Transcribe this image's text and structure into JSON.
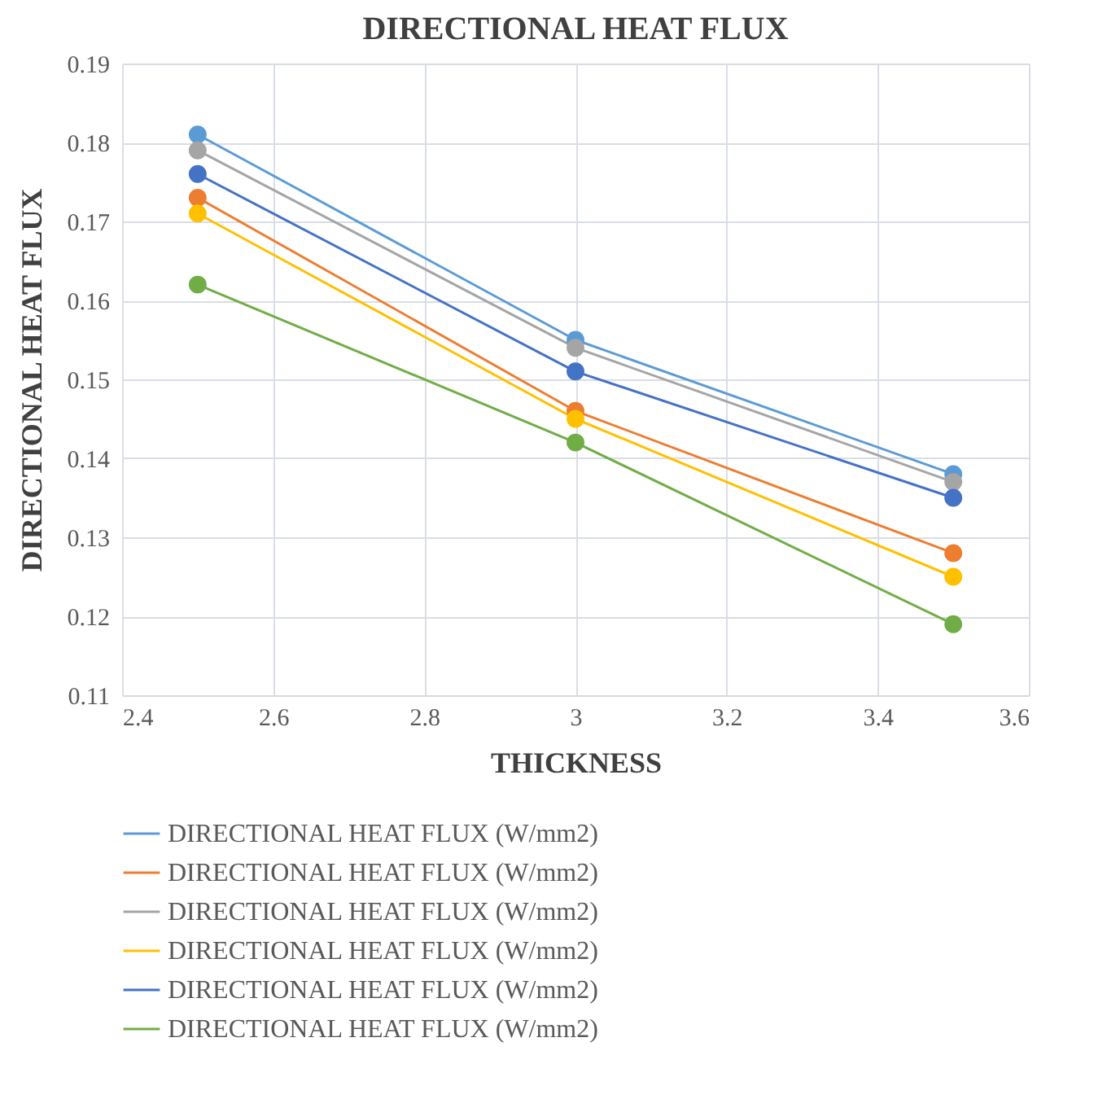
{
  "chart_data": {
    "type": "line",
    "title": "DIRECTIONAL HEAT FLUX",
    "xlabel": "THICKNESS",
    "ylabel": "DIRECTIONAL HEAT FLUX",
    "x": [
      2.5,
      3,
      3.5
    ],
    "series": [
      {
        "name": "DIRECTIONAL HEAT FLUX (W/mm2)",
        "color": "#5b9bd5",
        "values": [
          0.181,
          0.155,
          0.138
        ]
      },
      {
        "name": "DIRECTIONAL HEAT FLUX (W/mm2)",
        "color": "#ed7d31",
        "values": [
          0.173,
          0.146,
          0.128
        ]
      },
      {
        "name": "DIRECTIONAL HEAT FLUX (W/mm2)",
        "color": "#a5a5a5",
        "values": [
          0.179,
          0.154,
          0.137
        ]
      },
      {
        "name": "DIRECTIONAL HEAT FLUX (W/mm2)",
        "color": "#ffc000",
        "values": [
          0.171,
          0.145,
          0.125
        ]
      },
      {
        "name": "DIRECTIONAL HEAT FLUX (W/mm2)",
        "color": "#4472c4",
        "values": [
          0.176,
          0.151,
          0.135
        ]
      },
      {
        "name": "DIRECTIONAL HEAT FLUX (W/mm2)",
        "color": "#70ad47",
        "values": [
          0.162,
          0.142,
          0.119
        ]
      }
    ],
    "xlim": [
      2.4,
      3.6
    ],
    "xticks": [
      2.4,
      2.6,
      2.8,
      3,
      3.2,
      3.4,
      3.6
    ],
    "ylim": [
      0.11,
      0.19
    ],
    "yticks": [
      0.11,
      0.12,
      0.13,
      0.14,
      0.15,
      0.16,
      0.17,
      0.18,
      0.19
    ],
    "grid": true,
    "legend": "bottom",
    "marker": "circle",
    "line_style": "solid"
  }
}
